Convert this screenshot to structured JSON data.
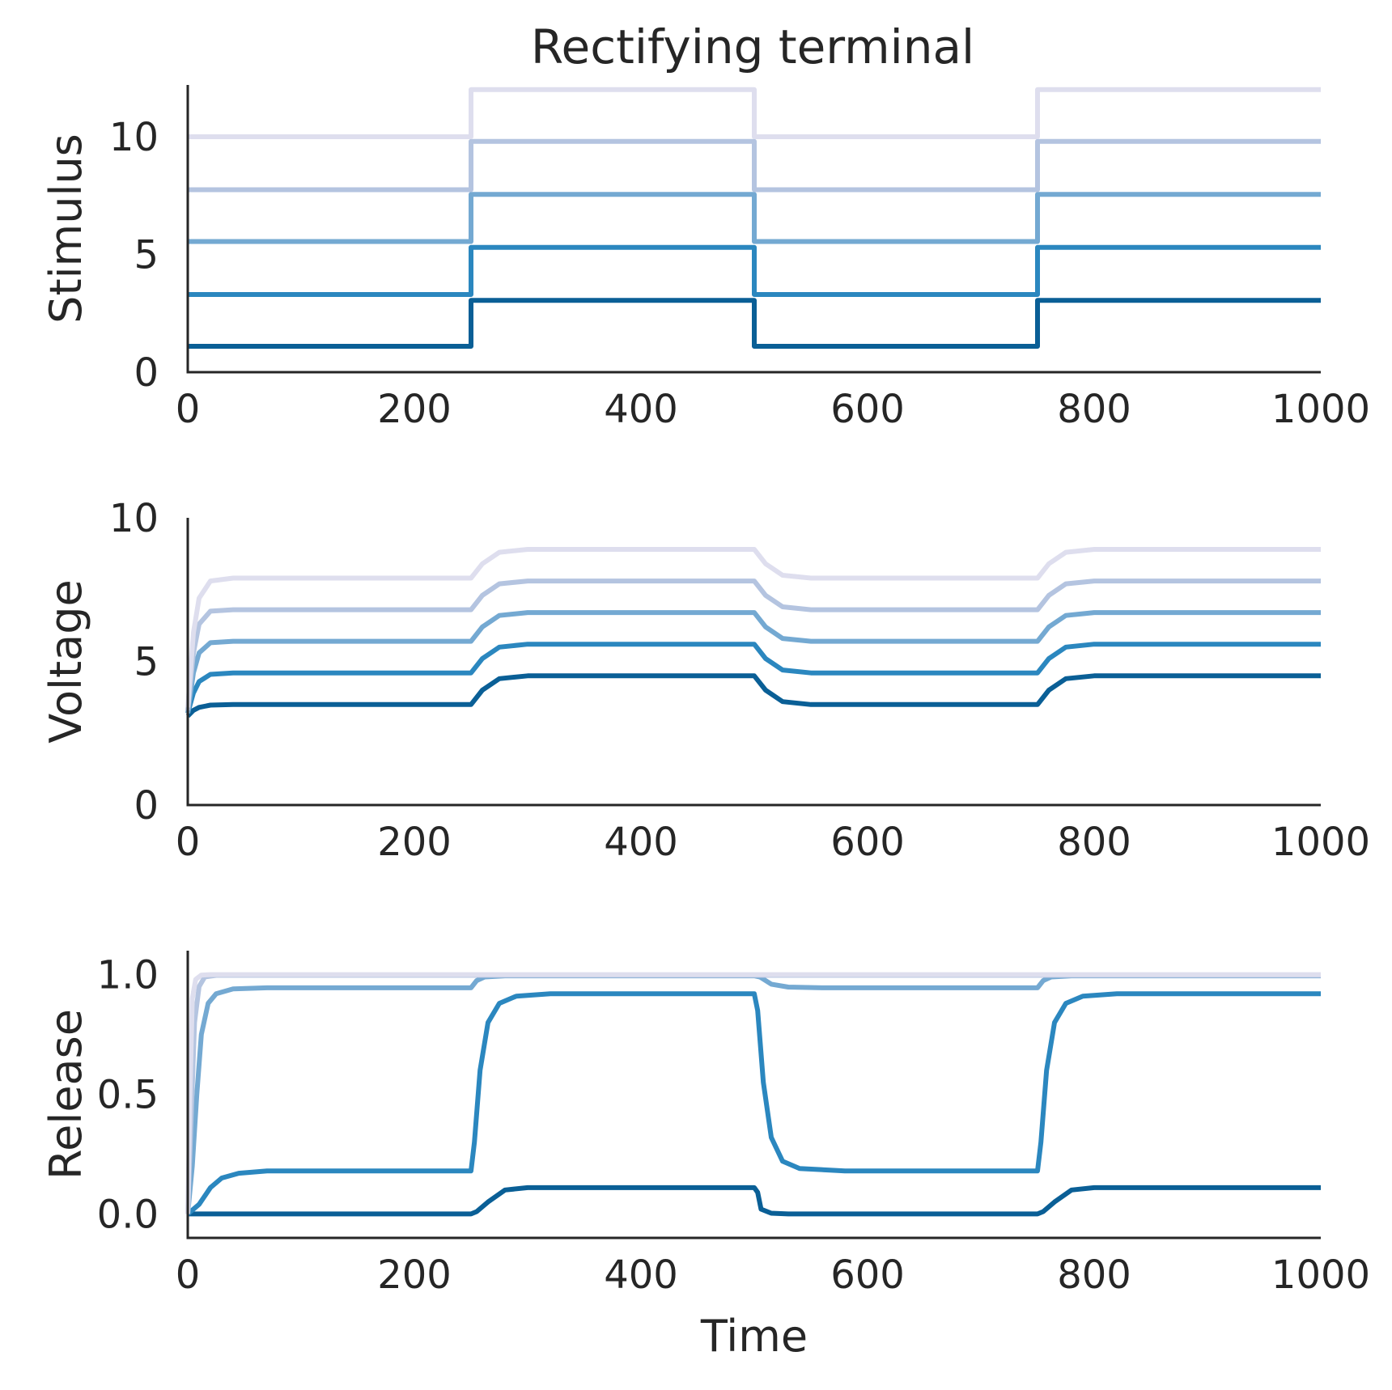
{
  "title": "Rectifying terminal",
  "colors": {
    "axis": "#262626",
    "series": [
      "#0a5f96",
      "#2b87bf",
      "#74a9d2",
      "#b4c4e0",
      "#dedeee"
    ]
  },
  "chart_data": [
    {
      "type": "line",
      "ylabel": "Stimulus",
      "xlabel": "",
      "xlim": [
        0,
        1000
      ],
      "ylim": [
        0,
        12.2
      ],
      "xticks": [
        0,
        200,
        400,
        600,
        800,
        1000
      ],
      "xtick_labels": [
        "0",
        "200",
        "400",
        "600",
        "800",
        "1000"
      ],
      "yticks": [
        0,
        5,
        10
      ],
      "ytick_labels": [
        "0",
        "5",
        "10"
      ],
      "grid": false,
      "legend": "none",
      "series": [
        {
          "x": [
            0,
            250,
            250,
            500,
            500,
            750,
            750,
            1000
          ],
          "values": [
            1.1,
            1.1,
            3.05,
            3.05,
            1.1,
            1.1,
            3.05,
            3.05
          ]
        },
        {
          "x": [
            0,
            250,
            250,
            500,
            500,
            750,
            750,
            1000
          ],
          "values": [
            3.3,
            3.3,
            5.3,
            5.3,
            3.3,
            3.3,
            5.3,
            5.3
          ]
        },
        {
          "x": [
            0,
            250,
            250,
            500,
            500,
            750,
            750,
            1000
          ],
          "values": [
            5.55,
            5.55,
            7.55,
            7.55,
            5.55,
            5.55,
            7.55,
            7.55
          ]
        },
        {
          "x": [
            0,
            250,
            250,
            500,
            500,
            750,
            750,
            1000
          ],
          "values": [
            7.75,
            7.75,
            9.8,
            9.8,
            7.75,
            7.75,
            9.8,
            9.8
          ]
        },
        {
          "x": [
            0,
            250,
            250,
            500,
            500,
            750,
            750,
            1000
          ],
          "values": [
            10.0,
            10.0,
            12.0,
            12.0,
            10.0,
            10.0,
            12.0,
            12.0
          ]
        }
      ]
    },
    {
      "type": "line",
      "ylabel": "Voltage",
      "xlabel": "",
      "xlim": [
        0,
        1000
      ],
      "ylim": [
        0,
        10
      ],
      "xticks": [
        0,
        200,
        400,
        600,
        800,
        1000
      ],
      "xtick_labels": [
        "0",
        "200",
        "400",
        "600",
        "800",
        "1000"
      ],
      "yticks": [
        0,
        5,
        10
      ],
      "ytick_labels": [
        "0",
        "5",
        "10"
      ],
      "grid": false,
      "legend": "none",
      "series": [
        {
          "x": [
            0,
            5,
            10,
            20,
            40,
            250,
            260,
            275,
            300,
            500,
            510,
            525,
            550,
            750,
            760,
            775,
            800,
            1000
          ],
          "values": [
            3.1,
            3.3,
            3.4,
            3.48,
            3.5,
            3.5,
            4.0,
            4.4,
            4.5,
            4.5,
            4.0,
            3.6,
            3.5,
            3.5,
            4.0,
            4.4,
            4.5,
            4.5
          ]
        },
        {
          "x": [
            0,
            5,
            10,
            20,
            40,
            250,
            260,
            275,
            300,
            500,
            510,
            525,
            550,
            750,
            760,
            775,
            800,
            1000
          ],
          "values": [
            3.2,
            3.9,
            4.3,
            4.55,
            4.6,
            4.6,
            5.1,
            5.5,
            5.6,
            5.6,
            5.1,
            4.7,
            4.6,
            4.6,
            5.1,
            5.5,
            5.6,
            5.6
          ]
        },
        {
          "x": [
            0,
            5,
            10,
            20,
            40,
            250,
            260,
            275,
            300,
            500,
            510,
            525,
            550,
            750,
            760,
            775,
            800,
            1000
          ],
          "values": [
            3.2,
            4.6,
            5.3,
            5.65,
            5.7,
            5.7,
            6.2,
            6.6,
            6.7,
            6.7,
            6.2,
            5.8,
            5.7,
            5.7,
            6.2,
            6.6,
            6.7,
            6.7
          ]
        },
        {
          "x": [
            0,
            5,
            10,
            20,
            40,
            250,
            260,
            275,
            300,
            500,
            510,
            525,
            550,
            750,
            760,
            775,
            800,
            1000
          ],
          "values": [
            3.3,
            5.3,
            6.3,
            6.75,
            6.8,
            6.8,
            7.3,
            7.7,
            7.8,
            7.8,
            7.3,
            6.9,
            6.8,
            6.8,
            7.3,
            7.7,
            7.8,
            7.8
          ]
        },
        {
          "x": [
            0,
            5,
            10,
            20,
            40,
            250,
            260,
            275,
            300,
            500,
            510,
            525,
            550,
            750,
            760,
            775,
            800,
            1000
          ],
          "values": [
            3.4,
            6.0,
            7.2,
            7.8,
            7.9,
            7.9,
            8.4,
            8.8,
            8.9,
            8.9,
            8.4,
            8.0,
            7.9,
            7.9,
            8.4,
            8.8,
            8.9,
            8.9
          ]
        }
      ]
    },
    {
      "type": "line",
      "ylabel": "Release",
      "xlabel": "Time",
      "xlim": [
        0,
        1000
      ],
      "ylim": [
        -0.1,
        1.1
      ],
      "xticks": [
        0,
        200,
        400,
        600,
        800,
        1000
      ],
      "xtick_labels": [
        "0",
        "200",
        "400",
        "600",
        "800",
        "1000"
      ],
      "yticks": [
        0.0,
        0.5,
        1.0
      ],
      "ytick_labels": [
        "0.0",
        "0.5",
        "1.0"
      ],
      "grid": false,
      "legend": "none",
      "series": [
        {
          "x": [
            0,
            250,
            255,
            265,
            280,
            300,
            500,
            503,
            506,
            515,
            530,
            750,
            755,
            765,
            780,
            800,
            1000
          ],
          "values": [
            0.0,
            0.0,
            0.01,
            0.05,
            0.1,
            0.11,
            0.11,
            0.09,
            0.02,
            0.003,
            0.0,
            0.0,
            0.01,
            0.05,
            0.1,
            0.11,
            0.11
          ]
        },
        {
          "x": [
            0,
            10,
            20,
            30,
            45,
            70,
            250,
            253,
            258,
            265,
            275,
            290,
            320,
            500,
            503,
            508,
            515,
            525,
            540,
            580,
            750,
            753,
            758,
            765,
            775,
            790,
            820,
            1000
          ],
          "values": [
            0.0,
            0.04,
            0.11,
            0.15,
            0.17,
            0.18,
            0.18,
            0.3,
            0.6,
            0.8,
            0.88,
            0.91,
            0.92,
            0.92,
            0.85,
            0.55,
            0.32,
            0.22,
            0.19,
            0.18,
            0.18,
            0.3,
            0.6,
            0.8,
            0.88,
            0.91,
            0.92,
            0.92
          ]
        },
        {
          "x": [
            0,
            4,
            8,
            12,
            18,
            25,
            40,
            70,
            250,
            255,
            262,
            280,
            500,
            505,
            515,
            530,
            560,
            750,
            755,
            762,
            780,
            1000
          ],
          "values": [
            0.0,
            0.2,
            0.5,
            0.75,
            0.88,
            0.92,
            0.94,
            0.945,
            0.945,
            0.975,
            0.99,
            0.995,
            0.995,
            0.99,
            0.96,
            0.948,
            0.945,
            0.945,
            0.975,
            0.99,
            0.995,
            0.995
          ]
        },
        {
          "x": [
            0,
            3,
            6,
            10,
            15,
            25,
            1000
          ],
          "values": [
            0.0,
            0.4,
            0.8,
            0.95,
            0.99,
            0.997,
            0.997
          ]
        },
        {
          "x": [
            0,
            2,
            4,
            7,
            12,
            20,
            1000
          ],
          "values": [
            0.0,
            0.5,
            0.9,
            0.98,
            0.998,
            1.0,
            1.0
          ]
        }
      ]
    }
  ]
}
